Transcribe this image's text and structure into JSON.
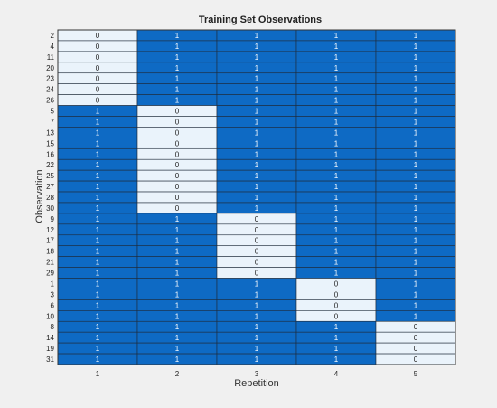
{
  "chart_data": {
    "type": "heatmap",
    "title": "Training Set Observations",
    "xlabel": "Repetition",
    "ylabel": "Observation",
    "x_categories": [
      "1",
      "2",
      "3",
      "4",
      "5"
    ],
    "y_categories": [
      "2",
      "4",
      "11",
      "20",
      "23",
      "24",
      "26",
      "5",
      "7",
      "13",
      "15",
      "16",
      "22",
      "25",
      "27",
      "28",
      "30",
      "9",
      "12",
      "17",
      "18",
      "21",
      "29",
      "1",
      "3",
      "6",
      "10",
      "8",
      "14",
      "19",
      "31"
    ],
    "values": [
      [
        0,
        1,
        1,
        1,
        1
      ],
      [
        0,
        1,
        1,
        1,
        1
      ],
      [
        0,
        1,
        1,
        1,
        1
      ],
      [
        0,
        1,
        1,
        1,
        1
      ],
      [
        0,
        1,
        1,
        1,
        1
      ],
      [
        0,
        1,
        1,
        1,
        1
      ],
      [
        0,
        1,
        1,
        1,
        1
      ],
      [
        1,
        0,
        1,
        1,
        1
      ],
      [
        1,
        0,
        1,
        1,
        1
      ],
      [
        1,
        0,
        1,
        1,
        1
      ],
      [
        1,
        0,
        1,
        1,
        1
      ],
      [
        1,
        0,
        1,
        1,
        1
      ],
      [
        1,
        0,
        1,
        1,
        1
      ],
      [
        1,
        0,
        1,
        1,
        1
      ],
      [
        1,
        0,
        1,
        1,
        1
      ],
      [
        1,
        0,
        1,
        1,
        1
      ],
      [
        1,
        0,
        1,
        1,
        1
      ],
      [
        1,
        1,
        0,
        1,
        1
      ],
      [
        1,
        1,
        0,
        1,
        1
      ],
      [
        1,
        1,
        0,
        1,
        1
      ],
      [
        1,
        1,
        0,
        1,
        1
      ],
      [
        1,
        1,
        0,
        1,
        1
      ],
      [
        1,
        1,
        0,
        1,
        1
      ],
      [
        1,
        1,
        1,
        0,
        1
      ],
      [
        1,
        1,
        1,
        0,
        1
      ],
      [
        1,
        1,
        1,
        0,
        1
      ],
      [
        1,
        1,
        1,
        0,
        1
      ],
      [
        1,
        1,
        1,
        1,
        0
      ],
      [
        1,
        1,
        1,
        1,
        0
      ],
      [
        1,
        1,
        1,
        1,
        0
      ],
      [
        1,
        1,
        1,
        1,
        0
      ]
    ],
    "colors": {
      "one": "#0e6ac4",
      "zero": "#eaf3fb",
      "one_text": "#ffffff",
      "zero_text": "#222222",
      "background": "#f0f0f0"
    }
  }
}
